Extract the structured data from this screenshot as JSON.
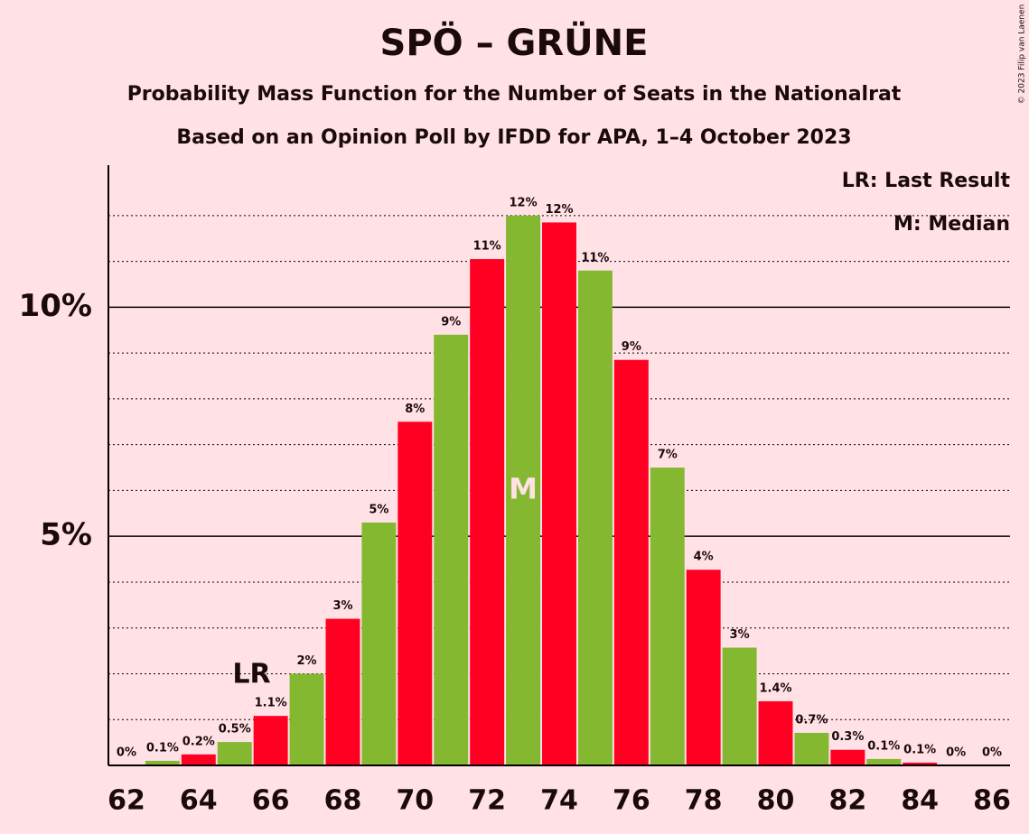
{
  "chart_data": {
    "type": "bar",
    "title": "SPÖ – GRÜNE",
    "subtitle": "Probability Mass Function for the Number of Seats in the Nationalrat",
    "subtitle2": "Based on an Opinion Poll by IFDD for APA, 1–4 October 2023",
    "copyright": "© 2023 Filip van Laenen",
    "legend": [
      "LR: Last Result",
      "M: Median"
    ],
    "x": [
      62,
      63,
      64,
      65,
      66,
      67,
      68,
      69,
      70,
      71,
      72,
      73,
      74,
      75,
      76,
      77,
      78,
      79,
      80,
      81,
      82,
      83,
      84,
      85,
      86
    ],
    "values": [
      0,
      0.1,
      0.24,
      0.51,
      1.08,
      2.0,
      3.2,
      5.3,
      7.5,
      9.4,
      11.05,
      12.0,
      11.85,
      10.8,
      8.85,
      6.5,
      4.27,
      2.57,
      1.4,
      0.71,
      0.34,
      0.14,
      0.06,
      0,
      0
    ],
    "value_labels": [
      "0%",
      "0.1%",
      "0.2%",
      "0.5%",
      "1.1%",
      "2%",
      "3%",
      "5%",
      "8%",
      "9%",
      "11%",
      "12%",
      "12%",
      "11%",
      "9%",
      "7%",
      "4%",
      "3%",
      "1.4%",
      "0.7%",
      "0.3%",
      "0.1%",
      "0.1%",
      "0%",
      "0%"
    ],
    "colors": [
      "#ff0022",
      "#84b830"
    ],
    "xlim": [
      61.5,
      86.5
    ],
    "xticks": [
      62,
      64,
      66,
      68,
      70,
      72,
      74,
      76,
      78,
      80,
      82,
      84,
      86
    ],
    "ylim": [
      0,
      13.1
    ],
    "yticks": [
      {
        "value": 5,
        "label": "5%"
      },
      {
        "value": 10,
        "label": "10%"
      }
    ],
    "minor_yticks": [
      1,
      2,
      3,
      4,
      6,
      7,
      8,
      9,
      11,
      12
    ],
    "annotations": [
      {
        "x": 66,
        "label": "LR"
      },
      {
        "x": 73,
        "label": "M"
      }
    ]
  }
}
